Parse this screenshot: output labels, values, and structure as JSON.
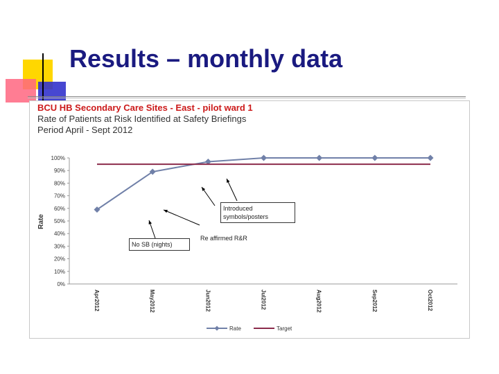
{
  "slide": {
    "title": "Results – monthly data"
  },
  "chart_data": {
    "type": "line",
    "title": "BCU HB  Secondary Care Sites - East - pilot ward 1",
    "subtitle_lines": [
      "Rate of Patients at Risk Identified at Safety Briefings",
      "Period April - Sept  2012"
    ],
    "xlabel": "",
    "ylabel": "Rate",
    "categories": [
      "Apr2012",
      "May2012",
      "Jun2012",
      "Jul2012",
      "Aug2012",
      "Sep2012",
      "Oct2012"
    ],
    "ylim": [
      0,
      100
    ],
    "y_ticks": [
      "0%",
      "10%",
      "20%",
      "30%",
      "40%",
      "50%",
      "60%",
      "70%",
      "80%",
      "90%",
      "100%"
    ],
    "series": [
      {
        "name": "Rate",
        "values": [
          59,
          89,
          97,
          100,
          100,
          100,
          100
        ],
        "color": "#7080a8",
        "marker": "diamond"
      },
      {
        "name": "Target",
        "values": [
          95,
          95,
          95,
          95,
          95,
          95,
          95
        ],
        "color": "#8b2a4a",
        "marker": "none"
      }
    ],
    "legend_position": "bottom",
    "grid": false,
    "annotations": [
      {
        "text": "No SB (nights)"
      },
      {
        "text": "Introduced symbols/posters"
      },
      {
        "text": "Re affirmed R&R"
      }
    ]
  }
}
